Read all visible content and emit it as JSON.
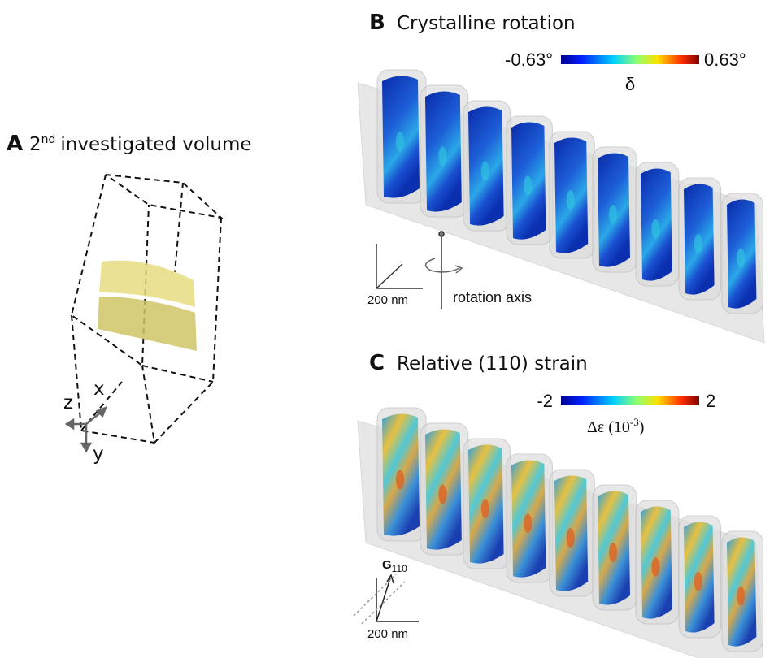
{
  "panel_a": {
    "letter": "A",
    "title_number": "2",
    "title_superscript": "nd",
    "title_rest": "investigated volume",
    "axis_x": "x",
    "axis_y": "y",
    "axis_z": "z"
  },
  "panel_b": {
    "letter": "B",
    "title": "Crystalline rotation",
    "colorbar_min": "-0.63°",
    "colorbar_max": "0.63°",
    "colorbar_label": "δ",
    "scale_bar": "200 nm",
    "axis_label": "rotation axis"
  },
  "panel_c": {
    "letter": "C",
    "title": "Relative (110) strain",
    "colorbar_min": "-2",
    "colorbar_max": "2",
    "colorbar_label_base": "Δε (10",
    "colorbar_label_exponent": "-3",
    "colorbar_label_end": ")",
    "vector_symbol": "G",
    "vector_subscript": "110",
    "scale_bar": "200 nm"
  }
}
